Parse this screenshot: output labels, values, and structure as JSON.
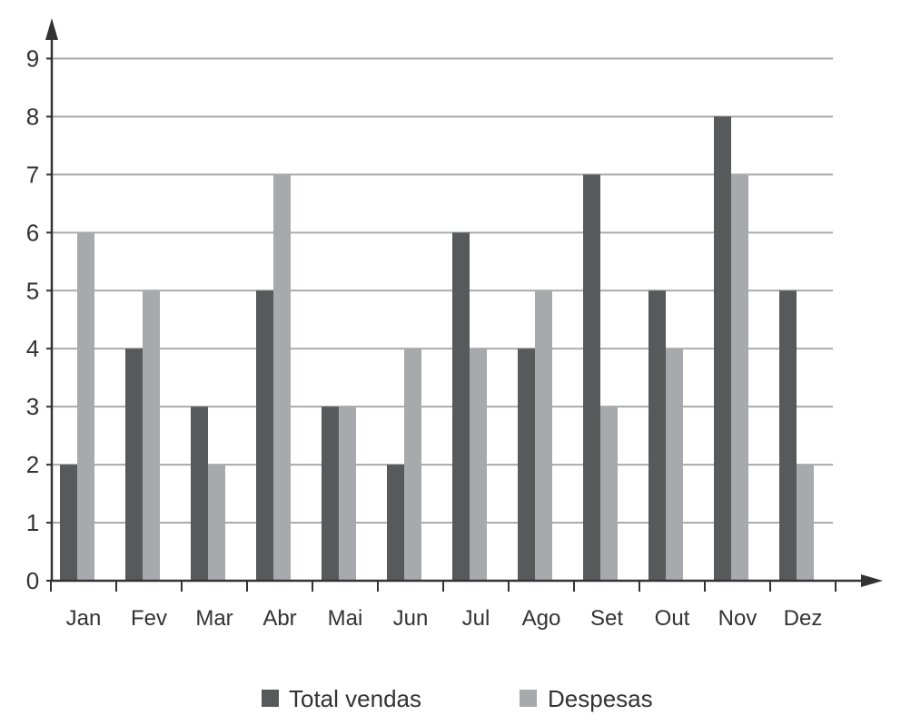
{
  "chart_data": {
    "type": "bar",
    "categories": [
      "Jan",
      "Fev",
      "Mar",
      "Abr",
      "Mai",
      "Jun",
      "Jul",
      "Ago",
      "Set",
      "Out",
      "Nov",
      "Dez"
    ],
    "series": [
      {
        "name": "Total vendas",
        "values": [
          2,
          4,
          3,
          5,
          3,
          2,
          6,
          4,
          7,
          5,
          8,
          5
        ],
        "color": "#58595b"
      },
      {
        "name": "Despesas",
        "values": [
          6,
          5,
          2,
          7,
          3,
          4,
          4,
          5,
          3,
          4,
          7,
          2
        ],
        "color": "#a7a9ac"
      }
    ],
    "ylim": [
      0,
      9
    ],
    "yticks": [
      "0",
      "1",
      "2",
      "3",
      "4",
      "5",
      "6",
      "7",
      "8",
      "9"
    ],
    "grid": true,
    "legend_position": "bottom-center",
    "gridline_color": "#aaaaaa",
    "axis_color": "#333333"
  }
}
